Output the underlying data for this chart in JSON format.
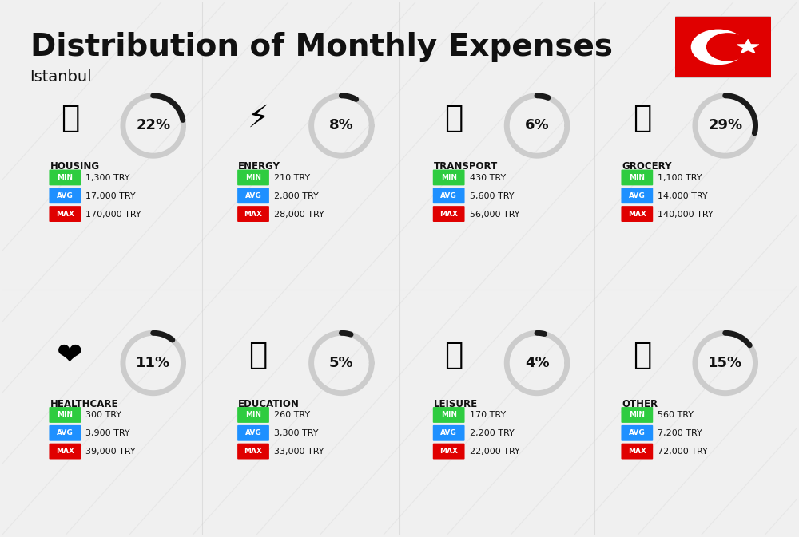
{
  "title": "Distribution of Monthly Expenses",
  "subtitle": "Istanbul",
  "bg_color": "#f0f0f0",
  "categories": [
    {
      "name": "HOUSING",
      "pct": 22,
      "min": "1,300 TRY",
      "avg": "17,000 TRY",
      "max": "170,000 TRY",
      "emoji": "🏢",
      "row": 0,
      "col": 0
    },
    {
      "name": "ENERGY",
      "pct": 8,
      "min": "210 TRY",
      "avg": "2,800 TRY",
      "max": "28,000 TRY",
      "emoji": "⚡",
      "row": 0,
      "col": 1
    },
    {
      "name": "TRANSPORT",
      "pct": 6,
      "min": "430 TRY",
      "avg": "5,600 TRY",
      "max": "56,000 TRY",
      "emoji": "🚌",
      "row": 0,
      "col": 2
    },
    {
      "name": "GROCERY",
      "pct": 29,
      "min": "1,100 TRY",
      "avg": "14,000 TRY",
      "max": "140,000 TRY",
      "emoji": "🛒",
      "row": 0,
      "col": 3
    },
    {
      "name": "HEALTHCARE",
      "pct": 11,
      "min": "300 TRY",
      "avg": "3,900 TRY",
      "max": "39,000 TRY",
      "emoji": "❤",
      "row": 1,
      "col": 0
    },
    {
      "name": "EDUCATION",
      "pct": 5,
      "min": "260 TRY",
      "avg": "3,300 TRY",
      "max": "33,000 TRY",
      "emoji": "🎓",
      "row": 1,
      "col": 1
    },
    {
      "name": "LEISURE",
      "pct": 4,
      "min": "170 TRY",
      "avg": "2,200 TRY",
      "max": "22,000 TRY",
      "emoji": "🛍",
      "row": 1,
      "col": 2
    },
    {
      "name": "OTHER",
      "pct": 15,
      "min": "560 TRY",
      "avg": "7,200 TRY",
      "max": "72,000 TRY",
      "emoji": "💰",
      "row": 1,
      "col": 3
    }
  ],
  "min_color": "#2ecc40",
  "avg_color": "#1e90ff",
  "max_color": "#e00000",
  "label_color": "#ffffff",
  "text_color": "#111111",
  "donut_filled": "#1a1a1a",
  "donut_empty": "#cccccc",
  "flag_bg": "#e00000"
}
